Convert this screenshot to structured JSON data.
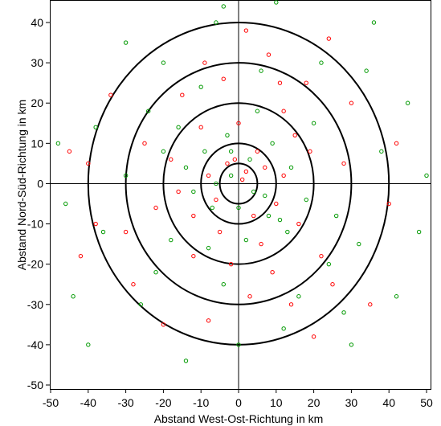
{
  "chart_data": {
    "type": "scatter",
    "title": "",
    "xlabel": "Abstand West-Ost-Richtung in km",
    "ylabel": "Abstand Nord-Süd-Richtung in km",
    "xlim": [
      -50,
      50
    ],
    "ylim": [
      -50,
      45
    ],
    "x_ticks": [
      -50,
      -40,
      -30,
      -20,
      -10,
      0,
      10,
      20,
      30,
      40,
      50
    ],
    "y_ticks": [
      -50,
      -40,
      -30,
      -20,
      -10,
      0,
      10,
      20,
      30,
      40
    ],
    "grid": false,
    "reference_lines": {
      "x": 0,
      "y": 0
    },
    "rings_km": [
      5,
      10,
      20,
      30,
      40
    ],
    "series_colors": [
      "#ff0000",
      "#009900"
    ],
    "series": [
      {
        "values": [
          [
            -3,
            5
          ],
          [
            2,
            3
          ],
          [
            5,
            8
          ],
          [
            -8,
            2
          ],
          [
            10,
            -5
          ],
          [
            -12,
            -8
          ],
          [
            15,
            12
          ],
          [
            -18,
            6
          ],
          [
            6,
            -15
          ],
          [
            -2,
            -20
          ],
          [
            22,
            -18
          ],
          [
            -25,
            10
          ],
          [
            28,
            5
          ],
          [
            -30,
            -12
          ],
          [
            18,
            25
          ],
          [
            -15,
            22
          ],
          [
            8,
            32
          ],
          [
            -38,
            -10
          ],
          [
            -40,
            5
          ],
          [
            35,
            -30
          ],
          [
            -20,
            -35
          ],
          [
            20,
            -38
          ],
          [
            -6,
            -4
          ],
          [
            4,
            -8
          ],
          [
            12,
            2
          ],
          [
            -10,
            14
          ],
          [
            0,
            15
          ],
          [
            3,
            -28
          ],
          [
            25,
            -25
          ],
          [
            -28,
            -25
          ],
          [
            -45,
            8
          ],
          [
            42,
            10
          ],
          [
            12,
            18
          ],
          [
            -4,
            26
          ],
          [
            16,
            -10
          ],
          [
            -22,
            -6
          ],
          [
            30,
            20
          ],
          [
            -34,
            22
          ],
          [
            2,
            38
          ],
          [
            24,
            36
          ],
          [
            -12,
            -18
          ],
          [
            9,
            -22
          ],
          [
            14,
            -30
          ],
          [
            -8,
            -34
          ],
          [
            40,
            -5
          ],
          [
            -42,
            -18
          ],
          [
            1,
            1
          ],
          [
            -1,
            6
          ],
          [
            7,
            4
          ],
          [
            -5,
            -12
          ],
          [
            19,
            8
          ],
          [
            -16,
            -2
          ],
          [
            11,
            25
          ],
          [
            -9,
            30
          ]
        ]
      },
      {
        "values": [
          [
            -2,
            8
          ],
          [
            4,
            -2
          ],
          [
            -7,
            -6
          ],
          [
            9,
            10
          ],
          [
            -14,
            4
          ],
          [
            13,
            -12
          ],
          [
            -18,
            -14
          ],
          [
            20,
            15
          ],
          [
            -24,
            18
          ],
          [
            26,
            -8
          ],
          [
            -30,
            2
          ],
          [
            32,
            -15
          ],
          [
            -10,
            24
          ],
          [
            6,
            28
          ],
          [
            -4,
            -25
          ],
          [
            16,
            -28
          ],
          [
            -36,
            -12
          ],
          [
            38,
            8
          ],
          [
            -20,
            30
          ],
          [
            22,
            30
          ],
          [
            -26,
            -30
          ],
          [
            28,
            -32
          ],
          [
            0,
            -40
          ],
          [
            -6,
            40
          ],
          [
            45,
            20
          ],
          [
            -46,
            -5
          ],
          [
            48,
            -12
          ],
          [
            -44,
            -28
          ],
          [
            10,
            45
          ],
          [
            -14,
            -44
          ],
          [
            8,
            -8
          ],
          [
            -3,
            12
          ],
          [
            5,
            18
          ],
          [
            -12,
            -2
          ],
          [
            14,
            4
          ],
          [
            -8,
            -16
          ],
          [
            18,
            -4
          ],
          [
            -20,
            8
          ],
          [
            2,
            -14
          ],
          [
            -16,
            14
          ],
          [
            24,
            -20
          ],
          [
            -22,
            -22
          ],
          [
            34,
            28
          ],
          [
            -38,
            14
          ],
          [
            30,
            -40
          ],
          [
            -30,
            35
          ],
          [
            12,
            -36
          ],
          [
            -2,
            2
          ],
          [
            3,
            6
          ],
          [
            -6,
            0
          ],
          [
            0,
            -6
          ],
          [
            7,
            -3
          ],
          [
            -9,
            8
          ],
          [
            11,
            -9
          ],
          [
            42,
            -28
          ],
          [
            -48,
            10
          ],
          [
            36,
            40
          ],
          [
            -4,
            44
          ],
          [
            50,
            2
          ],
          [
            -40,
            -40
          ]
        ]
      }
    ]
  }
}
